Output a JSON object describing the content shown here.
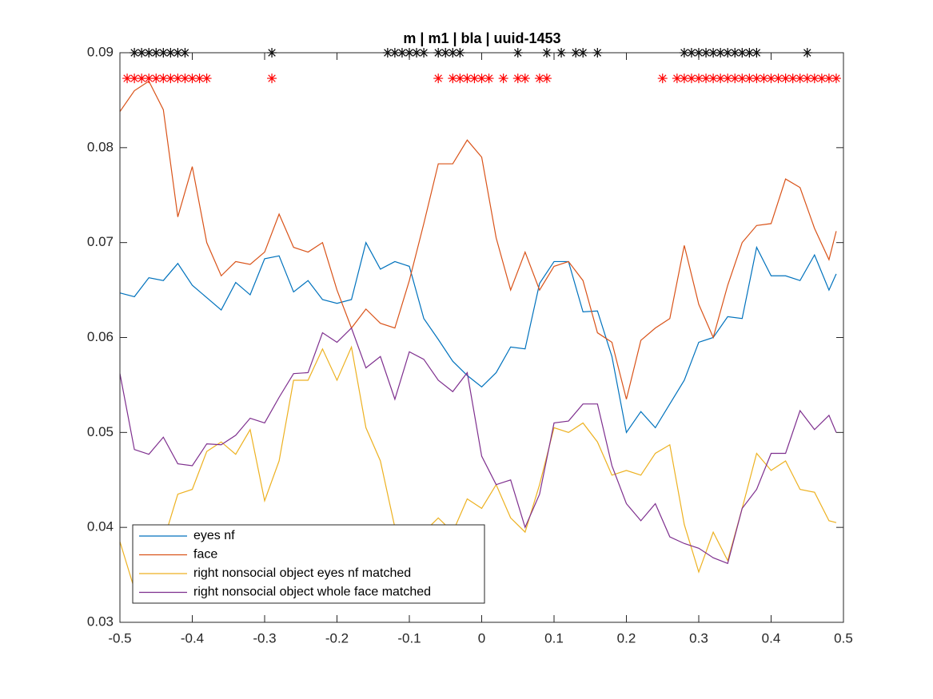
{
  "chart_data": {
    "type": "line",
    "title": "m | m1 | bla | uuid-1453",
    "x": [
      -0.5,
      -0.48,
      -0.46,
      -0.44,
      -0.42,
      -0.4,
      -0.38,
      -0.36,
      -0.34,
      -0.32,
      -0.3,
      -0.28,
      -0.26,
      -0.24,
      -0.22,
      -0.2,
      -0.18,
      -0.16,
      -0.14,
      -0.12,
      -0.1,
      -0.08,
      -0.06,
      -0.04,
      -0.02,
      0,
      0.02,
      0.04,
      0.06,
      0.08,
      0.1,
      0.12,
      0.14,
      0.16,
      0.18,
      0.2,
      0.22,
      0.24,
      0.26,
      0.28,
      0.3,
      0.32,
      0.34,
      0.36,
      0.38,
      0.4,
      0.42,
      0.44,
      0.46,
      0.48,
      0.49
    ],
    "series": [
      {
        "name": "eyes nf",
        "color": "#0072BD",
        "values": [
          0.0647,
          0.0643,
          0.0663,
          0.066,
          0.0678,
          0.0655,
          0.0642,
          0.0629,
          0.0658,
          0.0645,
          0.0683,
          0.0686,
          0.0648,
          0.066,
          0.064,
          0.0636,
          0.064,
          0.07,
          0.0672,
          0.068,
          0.0675,
          0.062,
          0.0598,
          0.0575,
          0.056,
          0.0548,
          0.0563,
          0.059,
          0.0588,
          0.0657,
          0.068,
          0.068,
          0.0627,
          0.0628,
          0.058,
          0.05,
          0.0522,
          0.0505,
          0.053,
          0.0555,
          0.0595,
          0.06,
          0.0622,
          0.062,
          0.0695,
          0.0665,
          0.0665,
          0.066,
          0.0687,
          0.065,
          0.0667
        ]
      },
      {
        "name": "face",
        "color": "#D95319",
        "values": [
          0.0838,
          0.086,
          0.087,
          0.084,
          0.0727,
          0.078,
          0.07,
          0.0665,
          0.068,
          0.0677,
          0.069,
          0.073,
          0.0695,
          0.069,
          0.07,
          0.065,
          0.061,
          0.063,
          0.0615,
          0.061,
          0.066,
          0.072,
          0.0783,
          0.0783,
          0.0808,
          0.079,
          0.0705,
          0.065,
          0.069,
          0.065,
          0.0675,
          0.068,
          0.066,
          0.0605,
          0.0595,
          0.0535,
          0.0597,
          0.061,
          0.062,
          0.0697,
          0.0635,
          0.06,
          0.0655,
          0.07,
          0.0718,
          0.072,
          0.0767,
          0.0758,
          0.0715,
          0.0682,
          0.0712
        ]
      },
      {
        "name": "right nonsocial object eyes nf matched",
        "color": "#EDB120",
        "values": [
          0.0385,
          0.0335,
          0.0325,
          0.0385,
          0.0435,
          0.044,
          0.048,
          0.049,
          0.0477,
          0.0503,
          0.0428,
          0.047,
          0.0555,
          0.0555,
          0.0588,
          0.0555,
          0.059,
          0.0505,
          0.047,
          0.04,
          0.04,
          0.0395,
          0.041,
          0.0395,
          0.043,
          0.042,
          0.0445,
          0.041,
          0.0395,
          0.0445,
          0.0505,
          0.05,
          0.051,
          0.049,
          0.0455,
          0.046,
          0.0455,
          0.0478,
          0.0487,
          0.0403,
          0.0353,
          0.0395,
          0.0365,
          0.042,
          0.0478,
          0.046,
          0.047,
          0.044,
          0.0437,
          0.0407,
          0.0405
        ]
      },
      {
        "name": "right nonsocial object whole face matched",
        "color": "#7E2F8E",
        "values": [
          0.0562,
          0.0482,
          0.0477,
          0.0495,
          0.0467,
          0.0465,
          0.0488,
          0.0487,
          0.0497,
          0.0515,
          0.051,
          0.0537,
          0.0562,
          0.0563,
          0.0605,
          0.0595,
          0.061,
          0.0568,
          0.058,
          0.0535,
          0.0585,
          0.0577,
          0.0555,
          0.0543,
          0.0563,
          0.0475,
          0.0445,
          0.045,
          0.04,
          0.0435,
          0.051,
          0.0512,
          0.053,
          0.053,
          0.0465,
          0.0425,
          0.0407,
          0.0425,
          0.039,
          0.0383,
          0.0378,
          0.0368,
          0.0362,
          0.042,
          0.044,
          0.0478,
          0.0478,
          0.0523,
          0.0503,
          0.0518,
          0.05
        ]
      }
    ],
    "markers": [
      {
        "color": "#000000",
        "x": [
          -0.48,
          -0.47,
          -0.46,
          -0.45,
          -0.44,
          -0.43,
          -0.42,
          -0.41,
          -0.29,
          -0.13,
          -0.12,
          -0.11,
          -0.1,
          -0.09,
          -0.08,
          -0.06,
          -0.05,
          -0.04,
          -0.03,
          0.05,
          0.09,
          0.11,
          0.13,
          0.14,
          0.16,
          0.28,
          0.29,
          0.3,
          0.31,
          0.32,
          0.33,
          0.34,
          0.35,
          0.36,
          0.37,
          0.38,
          0.45
        ],
        "y": [
          0.09,
          0.09,
          0.09,
          0.09,
          0.09,
          0.09,
          0.09,
          0.09,
          0.09,
          0.09,
          0.09,
          0.09,
          0.09,
          0.09,
          0.09,
          0.09,
          0.09,
          0.09,
          0.09,
          0.09,
          0.09,
          0.09,
          0.09,
          0.09,
          0.09,
          0.09,
          0.09,
          0.09,
          0.09,
          0.09,
          0.09,
          0.09,
          0.09,
          0.09,
          0.09,
          0.09,
          0.09
        ]
      },
      {
        "color": "#FF0000",
        "x": [
          -0.49,
          -0.48,
          -0.47,
          -0.46,
          -0.45,
          -0.44,
          -0.43,
          -0.42,
          -0.41,
          -0.4,
          -0.39,
          -0.38,
          -0.29,
          -0.06,
          -0.04,
          -0.03,
          -0.02,
          -0.01,
          0,
          0.01,
          0.03,
          0.05,
          0.06,
          0.08,
          0.09,
          0.25,
          0.27,
          0.28,
          0.29,
          0.3,
          0.31,
          0.32,
          0.33,
          0.34,
          0.35,
          0.36,
          0.37,
          0.38,
          0.39,
          0.4,
          0.41,
          0.42,
          0.43,
          0.44,
          0.45,
          0.46,
          0.47,
          0.48,
          0.49
        ],
        "y": [
          0.0873,
          0.0873,
          0.0873,
          0.0873,
          0.0873,
          0.0873,
          0.0873,
          0.0873,
          0.0873,
          0.0873,
          0.0873,
          0.0873,
          0.0873,
          0.0873,
          0.0873,
          0.0873,
          0.0873,
          0.0873,
          0.0873,
          0.0873,
          0.0873,
          0.0873,
          0.0873,
          0.0873,
          0.0873,
          0.0873,
          0.0873,
          0.0873,
          0.0873,
          0.0873,
          0.0873,
          0.0873,
          0.0873,
          0.0873,
          0.0873,
          0.0873,
          0.0873,
          0.0873,
          0.0873,
          0.0873,
          0.0873,
          0.0873,
          0.0873,
          0.0873,
          0.0873,
          0.0873,
          0.0873,
          0.0873,
          0.0873
        ]
      }
    ],
    "xlim": [
      -0.5,
      0.5
    ],
    "xticks": [
      -0.5,
      -0.4,
      -0.3,
      -0.2,
      -0.1,
      0,
      0.1,
      0.2,
      0.3,
      0.4,
      0.5
    ],
    "ylim": [
      0.03,
      0.09
    ],
    "yticks": [
      0.03,
      0.04,
      0.05,
      0.06,
      0.07,
      0.08,
      0.09
    ],
    "grid": false,
    "legend": "lower left"
  }
}
